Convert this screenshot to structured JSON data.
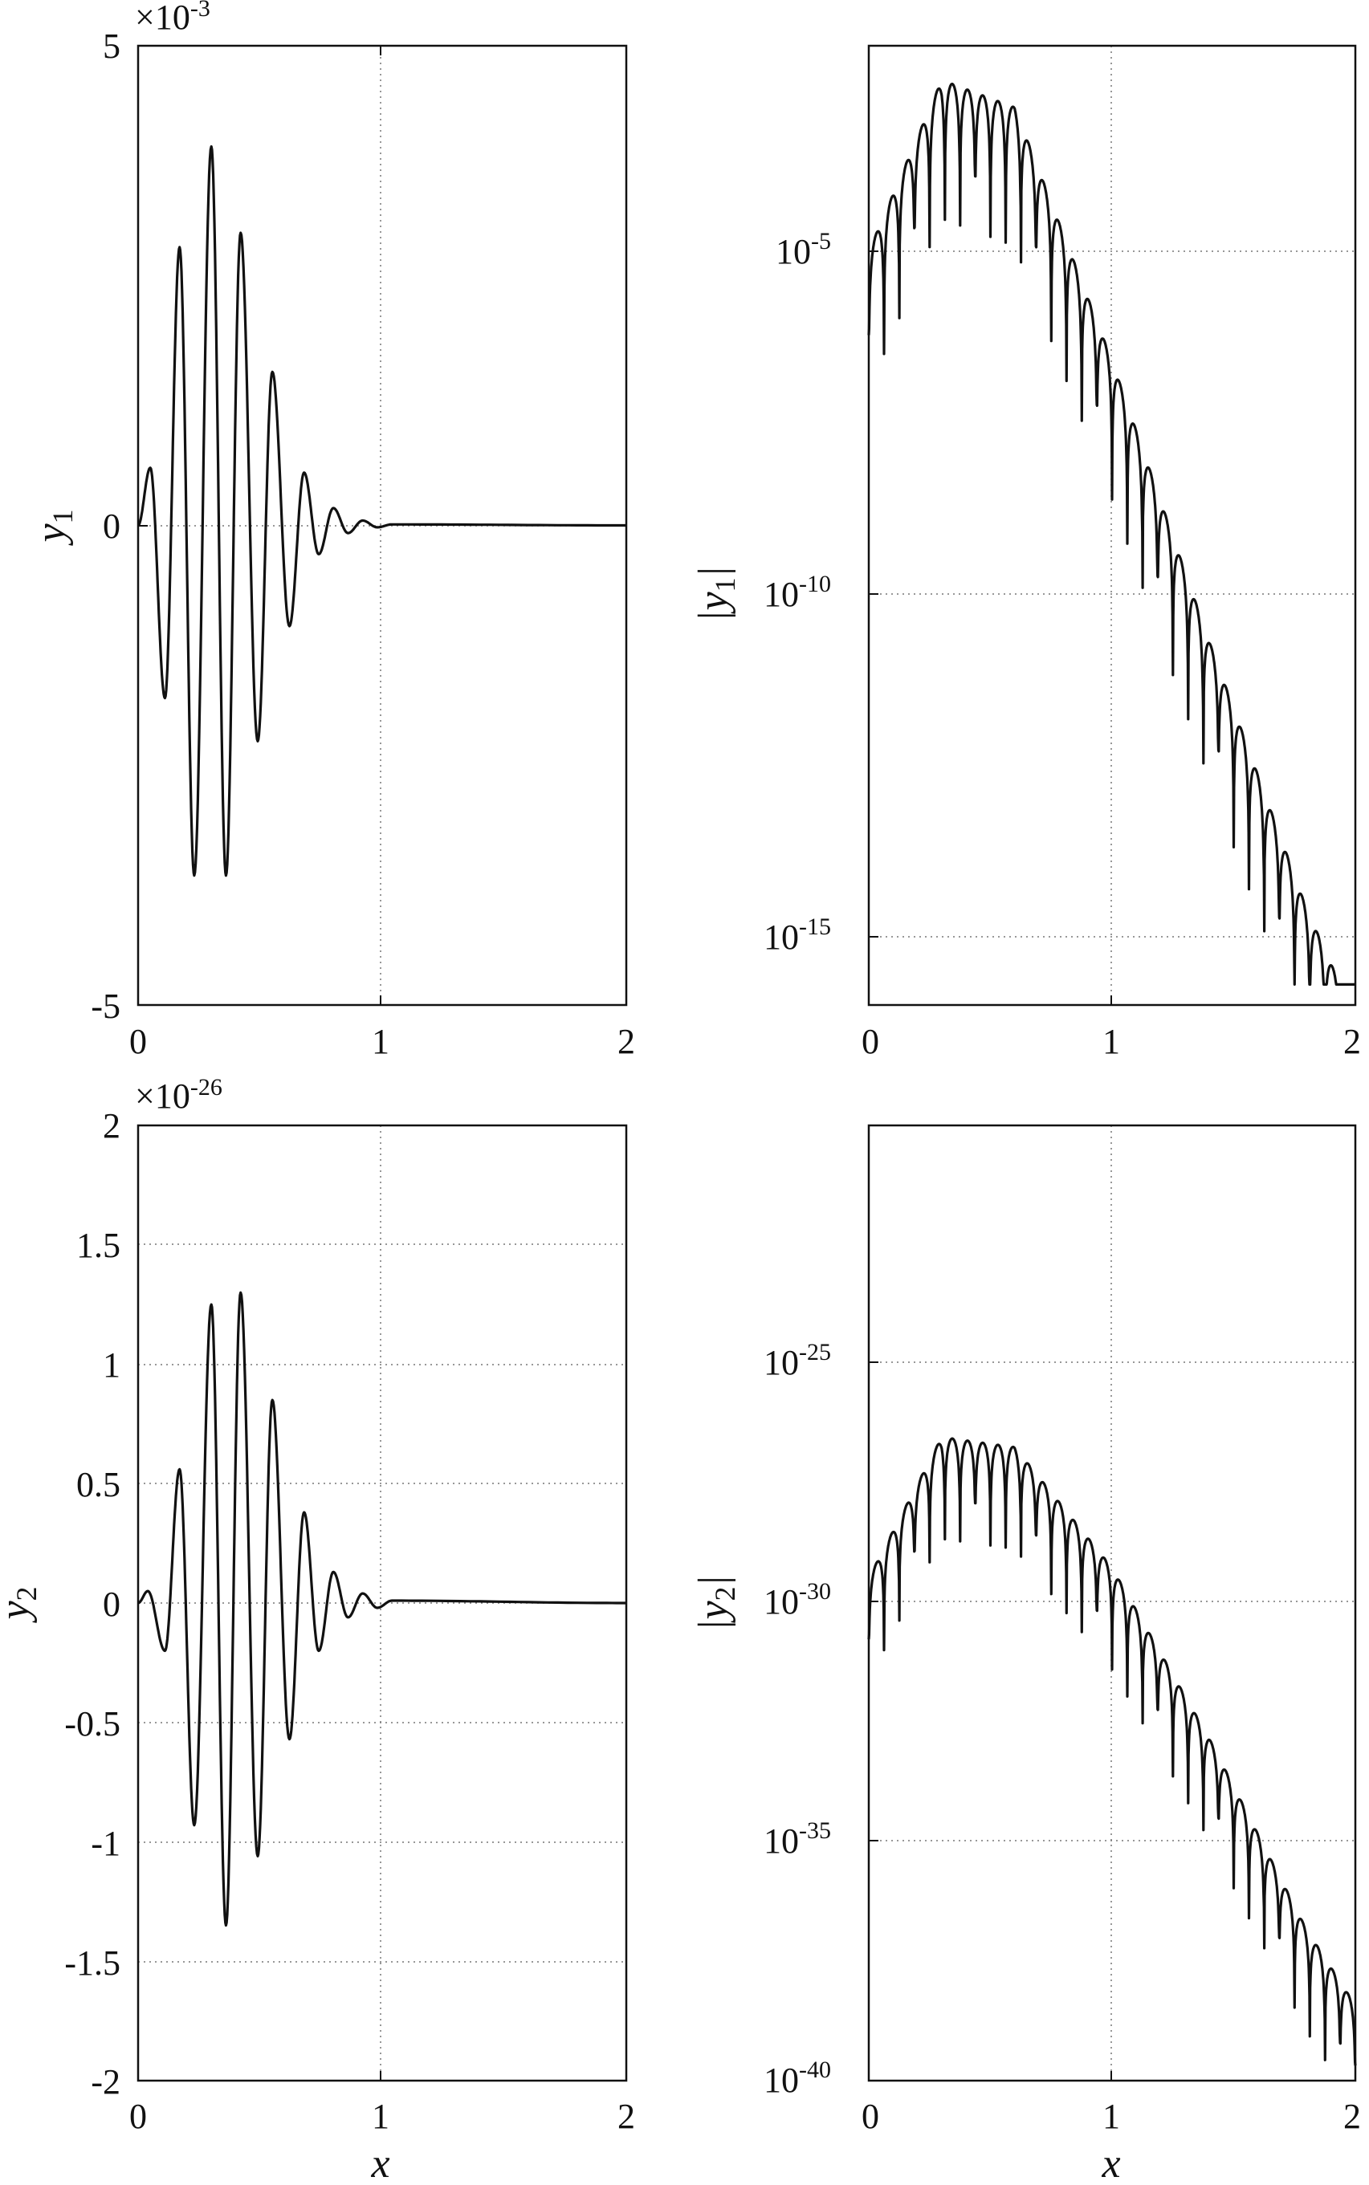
{
  "chart_data": [
    {
      "type": "line",
      "panel": "top-left",
      "ylabel": "y",
      "ylabel_sub": "1",
      "xlabel": "",
      "xlim": [
        0,
        2
      ],
      "ylim": [
        -5,
        5
      ],
      "yscale": "linear",
      "y_multiplier": "×10",
      "y_multiplier_exp": "-3",
      "x_ticks": [
        "0",
        "1",
        "2"
      ],
      "y_ticks": [
        {
          "v": -5,
          "label": "-5"
        },
        {
          "v": 0,
          "label": "0"
        },
        {
          "v": 5,
          "label": "5"
        }
      ],
      "grid": true,
      "x": [
        0,
        0.05,
        0.11,
        0.17,
        0.23,
        0.3,
        0.36,
        0.42,
        0.49,
        0.55,
        0.62,
        0.68,
        0.74,
        0.8,
        0.86,
        0.92,
        0.98,
        1.04,
        2.0
      ],
      "values": [
        0,
        0.6,
        -1.8,
        2.9,
        -3.65,
        3.95,
        -3.65,
        3.05,
        -2.25,
        1.6,
        -1.05,
        0.55,
        -0.3,
        0.18,
        -0.08,
        0.05,
        -0.02,
        0.01,
        0
      ]
    },
    {
      "type": "line",
      "panel": "top-right",
      "ylabel": "|y",
      "ylabel_sub": "1",
      "ylabel_end": "|",
      "xlabel": "",
      "xlim": [
        0,
        2
      ],
      "ylim": [
        1e-16,
        0.01
      ],
      "yscale": "log",
      "x_ticks": [
        "0",
        "1",
        "2"
      ],
      "y_ticks": [
        {
          "exp": -5,
          "label": "10",
          "sup": "-5"
        },
        {
          "exp": -10,
          "label": "10",
          "sup": "-10"
        },
        {
          "exp": -15,
          "label": "10",
          "sup": "-15"
        }
      ],
      "grid": true,
      "envelope_log10": {
        "x": [
          0,
          0.3,
          0.6,
          1.0,
          1.4,
          1.8,
          2.0
        ],
        "y": [
          -5,
          -2.5,
          -2.9,
          -6.6,
          -10.7,
          -14.6,
          -16.2
        ]
      },
      "lobe_period": 0.0625
    },
    {
      "type": "line",
      "panel": "bottom-left",
      "ylabel": "y",
      "ylabel_sub": "2",
      "xlabel": "x",
      "xlim": [
        0,
        2
      ],
      "ylim": [
        -2,
        2
      ],
      "yscale": "linear",
      "y_multiplier": "×10",
      "y_multiplier_exp": "-26",
      "x_ticks": [
        "0",
        "1",
        "2"
      ],
      "y_ticks": [
        {
          "v": 2,
          "label": "2"
        },
        {
          "v": 1.5,
          "label": "1.5"
        },
        {
          "v": 1,
          "label": "1"
        },
        {
          "v": 0.5,
          "label": "0.5"
        },
        {
          "v": 0,
          "label": "0"
        },
        {
          "v": -0.5,
          "label": "-0.5"
        },
        {
          "v": -1,
          "label": "-1"
        },
        {
          "v": -1.5,
          "label": "-1.5"
        },
        {
          "v": -2,
          "label": "-2"
        }
      ],
      "grid": true,
      "x": [
        0,
        0.04,
        0.11,
        0.17,
        0.23,
        0.3,
        0.36,
        0.42,
        0.49,
        0.55,
        0.62,
        0.68,
        0.74,
        0.8,
        0.86,
        0.92,
        0.98,
        1.04,
        2.0
      ],
      "values": [
        0,
        0.05,
        -0.2,
        0.56,
        -0.93,
        1.25,
        -1.35,
        1.3,
        -1.06,
        0.85,
        -0.57,
        0.38,
        -0.2,
        0.13,
        -0.06,
        0.04,
        -0.02,
        0.01,
        0
      ]
    },
    {
      "type": "line",
      "panel": "bottom-right",
      "ylabel": "|y",
      "ylabel_sub": "2",
      "ylabel_end": "|",
      "xlabel": "x",
      "xlim": [
        0,
        2
      ],
      "ylim": [
        1e-40,
        1e-21
      ],
      "yscale": "log",
      "x_ticks": [
        "0",
        "1",
        "2"
      ],
      "y_ticks": [
        {
          "exp": -25,
          "label": "10",
          "sup": "-25"
        },
        {
          "exp": -30,
          "label": "10",
          "sup": "-30"
        },
        {
          "exp": -35,
          "label": "10",
          "sup": "-35"
        },
        {
          "exp": -40,
          "label": "10",
          "sup": "-40"
        }
      ],
      "grid": true,
      "envelope_log10": {
        "x": [
          0,
          0.3,
          0.6,
          1.0,
          1.4,
          1.8,
          2.0
        ],
        "y": [
          -30,
          -27.2,
          -27.4,
          -29.8,
          -33.2,
          -37.0,
          -38.5
        ]
      },
      "lobe_period": 0.0625
    }
  ]
}
